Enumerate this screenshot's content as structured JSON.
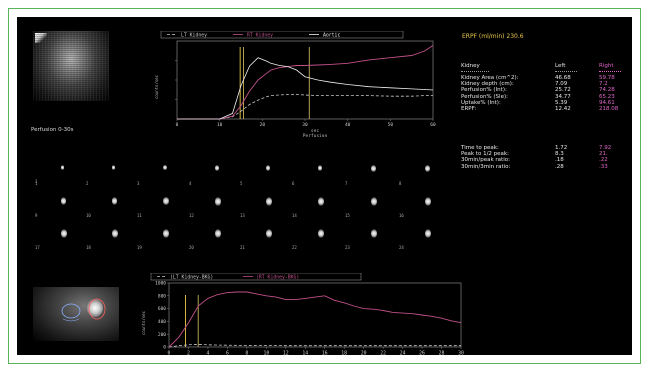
{
  "colors": {
    "background": "#000000",
    "frame": "#58b35b",
    "lt_kidney": "#c8c8c8",
    "rt_kidney": "#c0508a",
    "aortic": "#f0f0f0",
    "marker": "#c8b45a",
    "title_yellow": "#e8c84a",
    "right_col": "#e066c8"
  },
  "perfusion_label": "Perfusion 0-30s",
  "thumb_header": "1 sec/frame",
  "thumb_numbers": [
    "1",
    "2",
    "3",
    "4",
    "5",
    "6",
    "7",
    "8",
    "9",
    "10",
    "11",
    "12",
    "13",
    "14",
    "15",
    "16",
    "17",
    "18",
    "19",
    "20",
    "21",
    "22",
    "23",
    "24"
  ],
  "top_chart": {
    "legend": [
      "LT Kidney",
      "RT Kidney",
      "Aortic"
    ],
    "ylabel": "counts/sec",
    "xlabel": "sec",
    "xsub": "Perfusion",
    "xticks": [
      "0",
      "10",
      "20",
      "30",
      "40",
      "50",
      "60"
    ]
  },
  "bottom_chart": {
    "legend": [
      "(LT Kidney-BKG)",
      "(RT Kidney-BKG)"
    ],
    "ylabel": "counts/sec",
    "yticks": [
      "1000",
      "800",
      "600",
      "400",
      "200",
      "0"
    ],
    "xticks": [
      "0",
      "2",
      "4",
      "6",
      "8",
      "10",
      "12",
      "14",
      "16",
      "18",
      "20",
      "22",
      "24",
      "26",
      "28",
      "30"
    ]
  },
  "chart_data": [
    {
      "type": "line",
      "x": [
        0,
        10,
        13,
        15,
        17,
        19,
        21,
        22,
        24,
        26,
        28,
        30,
        33,
        36,
        40,
        45,
        50,
        55,
        58,
        60
      ],
      "series": [
        {
          "name": "LT Kidney",
          "values": [
            0,
            0,
            4,
            14,
            26,
            34,
            40,
            42,
            43,
            44,
            44,
            43,
            42,
            42,
            42,
            42,
            41,
            41,
            42,
            42
          ]
        },
        {
          "name": "RT Kidney",
          "values": [
            0,
            0,
            5,
            24,
            50,
            70,
            82,
            88,
            92,
            94,
            96,
            96,
            97,
            98,
            100,
            106,
            110,
            114,
            122,
            132
          ]
        },
        {
          "name": "Aortic",
          "values": [
            0,
            0,
            10,
            60,
            95,
            110,
            104,
            100,
            96,
            94,
            88,
            76,
            70,
            66,
            62,
            58,
            56,
            54,
            53,
            52
          ]
        }
      ],
      "xlim": [
        0,
        60
      ],
      "xlabel": "sec"
    },
    {
      "type": "line",
      "x": [
        0,
        1,
        2,
        3,
        4,
        5,
        6,
        7,
        8,
        9,
        10,
        11,
        12,
        13,
        14,
        15,
        16,
        17,
        18,
        19,
        20,
        21,
        22,
        23,
        24,
        25,
        26,
        27,
        28,
        29,
        30
      ],
      "series": [
        {
          "name": "(LT Kidney-BKG)",
          "values": [
            0,
            20,
            35,
            40,
            35,
            30,
            28,
            25,
            25,
            22,
            22,
            22,
            20,
            20,
            20,
            20,
            20,
            20,
            20,
            20,
            20,
            20,
            20,
            20,
            20,
            20,
            20,
            20,
            20,
            20,
            20
          ]
        },
        {
          "name": "(RT Kidney-BKG)",
          "values": [
            0,
            150,
            380,
            640,
            760,
            820,
            850,
            860,
            860,
            830,
            800,
            780,
            740,
            740,
            760,
            780,
            800,
            730,
            690,
            640,
            600,
            590,
            570,
            540,
            530,
            520,
            500,
            480,
            450,
            410,
            380
          ]
        }
      ],
      "xlim": [
        0,
        30
      ],
      "ylim": [
        0,
        1000
      ],
      "xlabel": "",
      "ylabel": "counts/sec"
    }
  ],
  "erpf_header": "ERPF (ml/min) 230.6",
  "table": {
    "col_kidney": "Kidney",
    "col_left": "Left",
    "col_right": "Right",
    "rows": [
      {
        "label": "Kidney Area (cm^2):",
        "left": "46.68",
        "right": "59.78"
      },
      {
        "label": "Kidney depth (cm):",
        "left": "7.09",
        "right": "7.2"
      },
      {
        "label": "Perfusion% (Int):",
        "left": "25.72",
        "right": "74.28"
      },
      {
        "label": "Perfusion% (Sle):",
        "left": "34.77",
        "right": "65.23"
      },
      {
        "label": "Uptake% (Int):",
        "left": "5.39",
        "right": "94.61"
      },
      {
        "label": "ERPF:",
        "left": "12.42",
        "right": "218.08"
      }
    ],
    "rows2": [
      {
        "label": "Time to peak:",
        "left": "1.72",
        "right": "7.92"
      },
      {
        "label": "Peak to 1/2 peak:",
        "left": "8.3",
        "right": "21."
      },
      {
        "label": "30min/peak ratio:",
        "left": ".18",
        "right": ".22"
      },
      {
        "label": "30min/3min ratio:",
        "left": ".28",
        "right": ".33"
      }
    ]
  }
}
